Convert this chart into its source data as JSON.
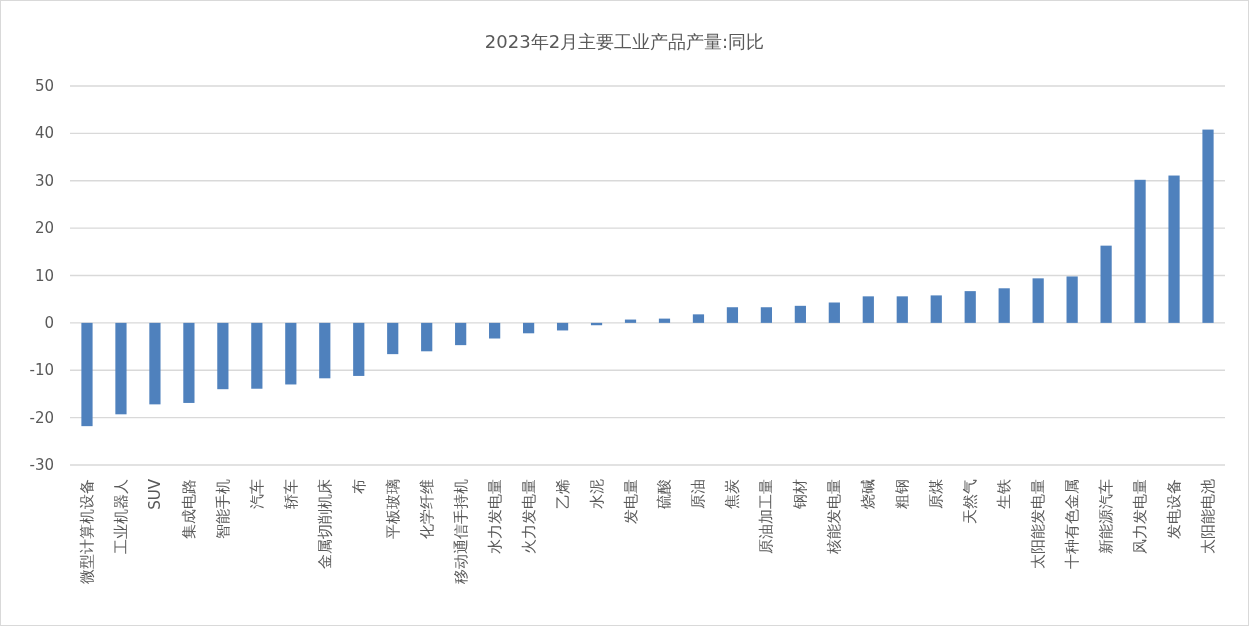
{
  "chart_data": {
    "type": "bar",
    "title": "2023年2月主要工业产品产量:同比",
    "categories": [
      "微型计算机设备",
      "工业机器人",
      "SUV",
      "集成电路",
      "智能手机",
      "汽车",
      "轿车",
      "金属切削机床",
      "布",
      "平板玻璃",
      "化学纤维",
      "移动通信手持机",
      "水力发电量",
      "火力发电量",
      "乙烯",
      "水泥",
      "发电量",
      "硫酸",
      "原油",
      "焦炭",
      "原油加工量",
      "钢材",
      "核能发电量",
      "烧碱",
      "粗钢",
      "原煤",
      "天然气",
      "生铁",
      "太阳能发电量",
      "十种有色金属",
      "新能源汽车",
      "风力发电量",
      "发电设备",
      "太阳能电池"
    ],
    "values": [
      -21.8,
      -19.3,
      -17.2,
      -16.9,
      -14.0,
      -13.9,
      -13.0,
      -11.7,
      -11.2,
      -6.6,
      -6.0,
      -4.7,
      -3.3,
      -2.2,
      -1.6,
      -0.5,
      0.7,
      0.9,
      1.8,
      3.3,
      3.3,
      3.6,
      4.3,
      5.6,
      5.6,
      5.8,
      6.7,
      7.3,
      9.4,
      9.8,
      16.3,
      30.2,
      31.1,
      40.8
    ],
    "color": "#4f81bd",
    "ylim": [
      -30,
      50
    ],
    "yticks": [
      -30,
      -20,
      -10,
      0,
      10,
      20,
      30,
      40,
      50
    ],
    "grid": "y"
  }
}
